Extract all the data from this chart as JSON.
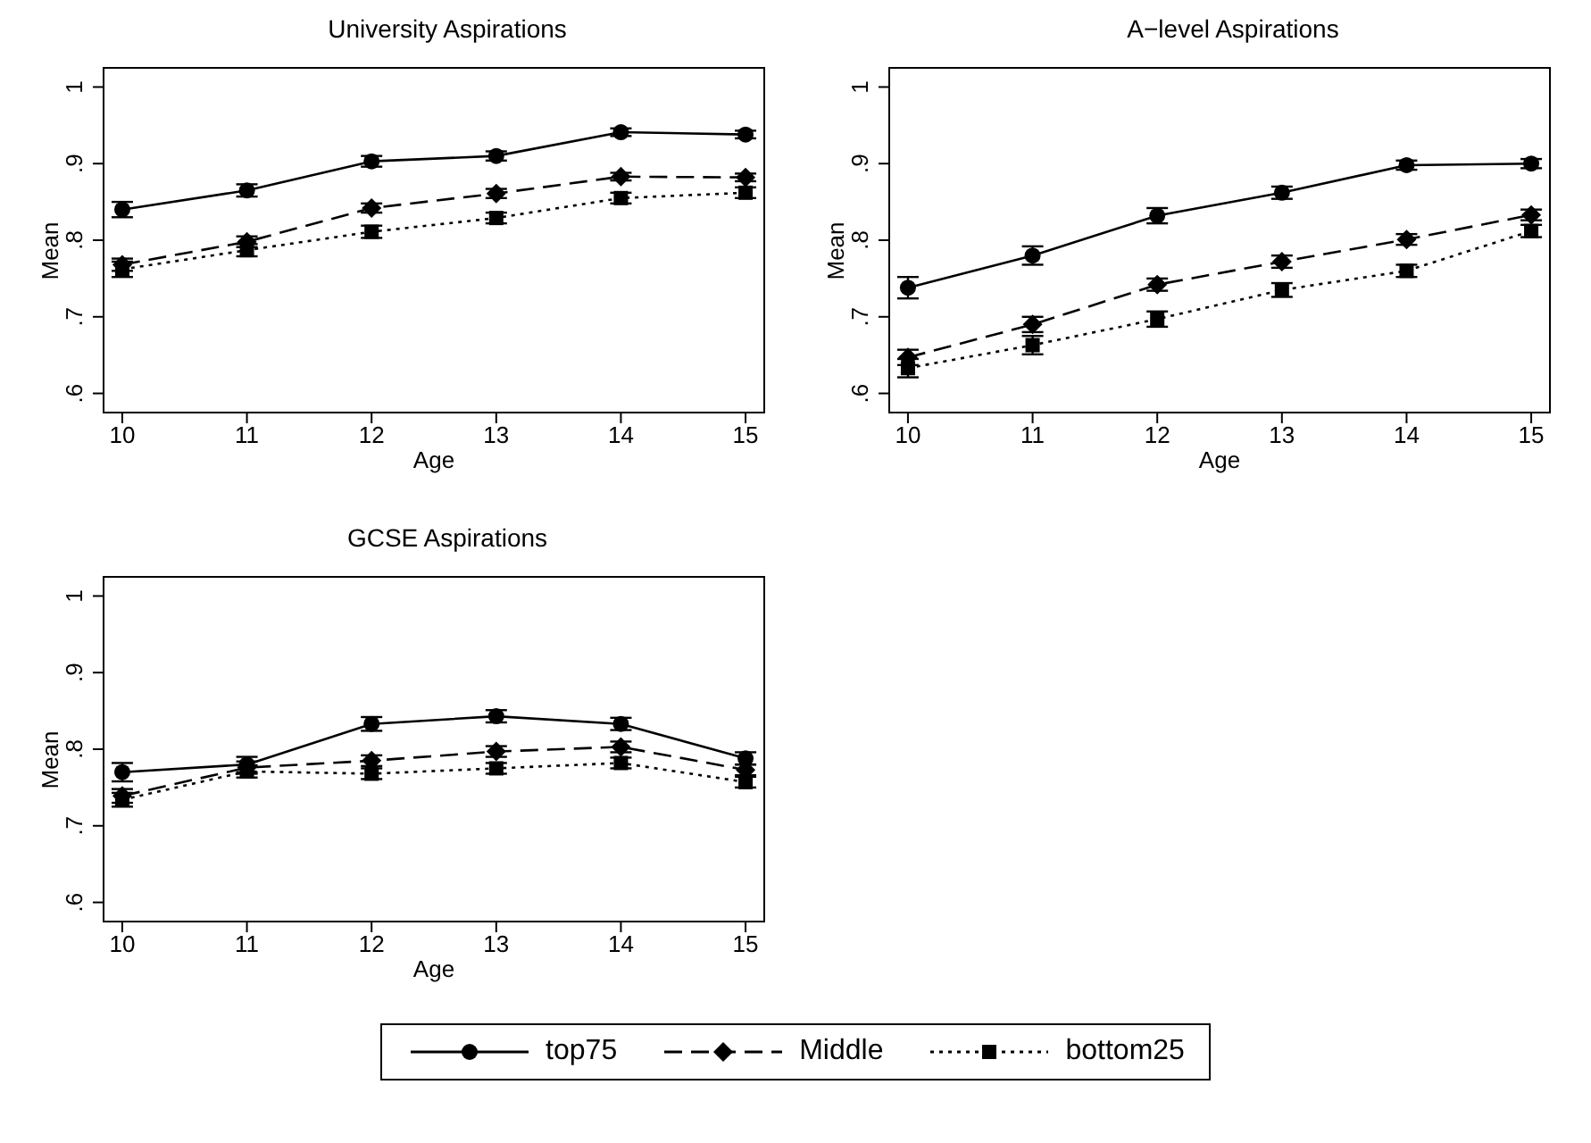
{
  "chart_data": [
    {
      "type": "line",
      "title": "University Aspirations",
      "xlabel": "Age",
      "ylabel": "Mean",
      "x": [
        10,
        11,
        12,
        13,
        14,
        15
      ],
      "xlim": [
        9.85,
        15.15
      ],
      "xticks": [
        10,
        11,
        12,
        13,
        14,
        15
      ],
      "ylim": [
        0.575,
        1.025
      ],
      "yticks": [
        {
          "value": 0.6,
          "label": ".6"
        },
        {
          "value": 0.7,
          "label": ".7"
        },
        {
          "value": 0.8,
          "label": ".8"
        },
        {
          "value": 0.9,
          "label": ".9"
        },
        {
          "value": 1,
          "label": "1"
        }
      ],
      "grid": false,
      "legend": "bottom",
      "series": [
        {
          "name": "top75",
          "color": "#000000",
          "marker": "circle",
          "line_style": "solid",
          "values": [
            0.84,
            0.865,
            0.903,
            0.91,
            0.941,
            0.938
          ],
          "errors": [
            0.01,
            0.008,
            0.007,
            0.006,
            0.005,
            0.005
          ]
        },
        {
          "name": "Middle",
          "color": "#000000",
          "marker": "diamond",
          "line_style": "dashed",
          "values": [
            0.768,
            0.798,
            0.842,
            0.861,
            0.883,
            0.882
          ],
          "errors": [
            0.008,
            0.007,
            0.006,
            0.006,
            0.005,
            0.005
          ]
        },
        {
          "name": "bottom25",
          "color": "#000000",
          "marker": "square",
          "line_style": "dotted",
          "values": [
            0.762,
            0.787,
            0.811,
            0.829,
            0.855,
            0.862
          ],
          "errors": [
            0.01,
            0.008,
            0.008,
            0.007,
            0.007,
            0.007
          ]
        }
      ]
    },
    {
      "type": "line",
      "title": "A−level Aspirations",
      "xlabel": "Age",
      "ylabel": "Mean",
      "x": [
        10,
        11,
        12,
        13,
        14,
        15
      ],
      "xlim": [
        9.85,
        15.15
      ],
      "xticks": [
        10,
        11,
        12,
        13,
        14,
        15
      ],
      "ylim": [
        0.575,
        1.025
      ],
      "yticks": [
        {
          "value": 0.6,
          "label": ".6"
        },
        {
          "value": 0.7,
          "label": ".7"
        },
        {
          "value": 0.8,
          "label": ".8"
        },
        {
          "value": 0.9,
          "label": ".9"
        },
        {
          "value": 1,
          "label": "1"
        }
      ],
      "grid": false,
      "series": [
        {
          "color": "#000000",
          "marker": "circle",
          "line_style": "solid",
          "values": [
            0.738,
            0.78,
            0.832,
            0.862,
            0.898,
            0.9
          ],
          "errors": [
            0.014,
            0.012,
            0.01,
            0.008,
            0.006,
            0.006
          ]
        },
        {
          "color": "#000000",
          "marker": "diamond",
          "line_style": "dashed",
          "values": [
            0.647,
            0.69,
            0.742,
            0.772,
            0.801,
            0.833
          ],
          "errors": [
            0.01,
            0.01,
            0.008,
            0.008,
            0.007,
            0.007
          ]
        },
        {
          "color": "#000000",
          "marker": "square",
          "line_style": "dotted",
          "values": [
            0.633,
            0.663,
            0.697,
            0.735,
            0.76,
            0.812
          ],
          "errors": [
            0.012,
            0.012,
            0.01,
            0.009,
            0.008,
            0.008
          ]
        }
      ]
    },
    {
      "type": "line",
      "title": "GCSE Aspirations",
      "xlabel": "Age",
      "ylabel": "Mean",
      "x": [
        10,
        11,
        12,
        13,
        14,
        15
      ],
      "xlim": [
        9.85,
        15.15
      ],
      "xticks": [
        10,
        11,
        12,
        13,
        14,
        15
      ],
      "ylim": [
        0.575,
        1.025
      ],
      "yticks": [
        {
          "value": 0.6,
          "label": ".6"
        },
        {
          "value": 0.7,
          "label": ".7"
        },
        {
          "value": 0.8,
          "label": ".8"
        },
        {
          "value": 0.9,
          "label": ".9"
        },
        {
          "value": 1,
          "label": "1"
        }
      ],
      "grid": false,
      "series": [
        {
          "color": "#000000",
          "marker": "circle",
          "line_style": "solid",
          "values": [
            0.77,
            0.78,
            0.833,
            0.843,
            0.833,
            0.788
          ],
          "errors": [
            0.012,
            0.01,
            0.009,
            0.008,
            0.008,
            0.008
          ]
        },
        {
          "color": "#000000",
          "marker": "diamond",
          "line_style": "dashed",
          "values": [
            0.739,
            0.776,
            0.785,
            0.797,
            0.803,
            0.773
          ],
          "errors": [
            0.009,
            0.008,
            0.007,
            0.007,
            0.007,
            0.007
          ]
        },
        {
          "color": "#000000",
          "marker": "square",
          "line_style": "dotted",
          "values": [
            0.734,
            0.771,
            0.768,
            0.775,
            0.782,
            0.757
          ],
          "errors": [
            0.009,
            0.008,
            0.007,
            0.007,
            0.007,
            0.007
          ]
        }
      ]
    }
  ]
}
